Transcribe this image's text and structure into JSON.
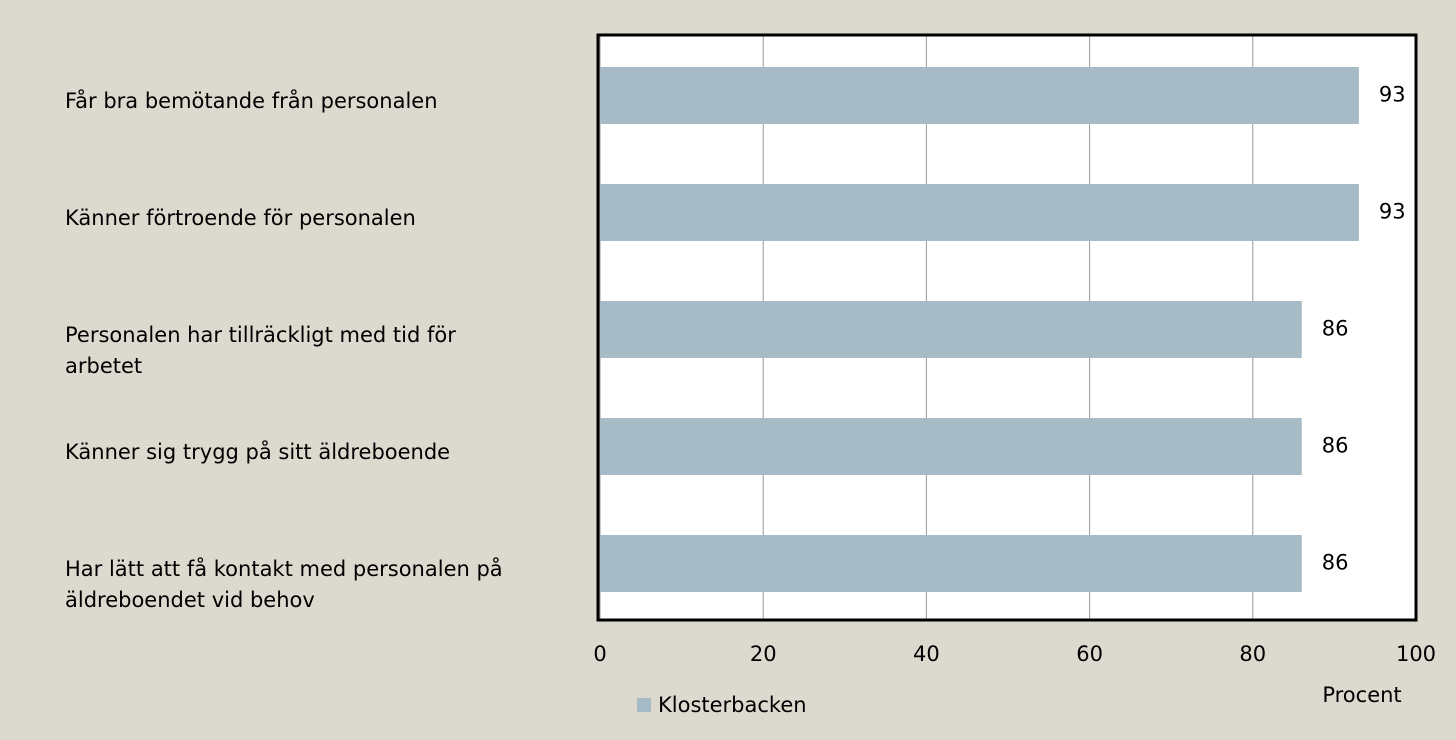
{
  "chart_data": {
    "type": "bar",
    "orientation": "horizontal",
    "categories": [
      "Får bra bemötande från personalen",
      "Känner förtroende för personalen",
      "Personalen har tillräckligt med tid för arbetet",
      "Känner sig trygg på sitt äldreboende",
      "Har lätt att få kontakt med personalen på äldreboendet vid behov"
    ],
    "series": [
      {
        "name": "Klosterbacken",
        "color": "#a7bbc7",
        "values": [
          93,
          93,
          86,
          86,
          86
        ]
      }
    ],
    "xlim": [
      0,
      100
    ],
    "xticks": [
      0,
      20,
      40,
      60,
      80,
      100
    ],
    "xlabel": "Procent",
    "grid": true,
    "legend": "bottom"
  }
}
